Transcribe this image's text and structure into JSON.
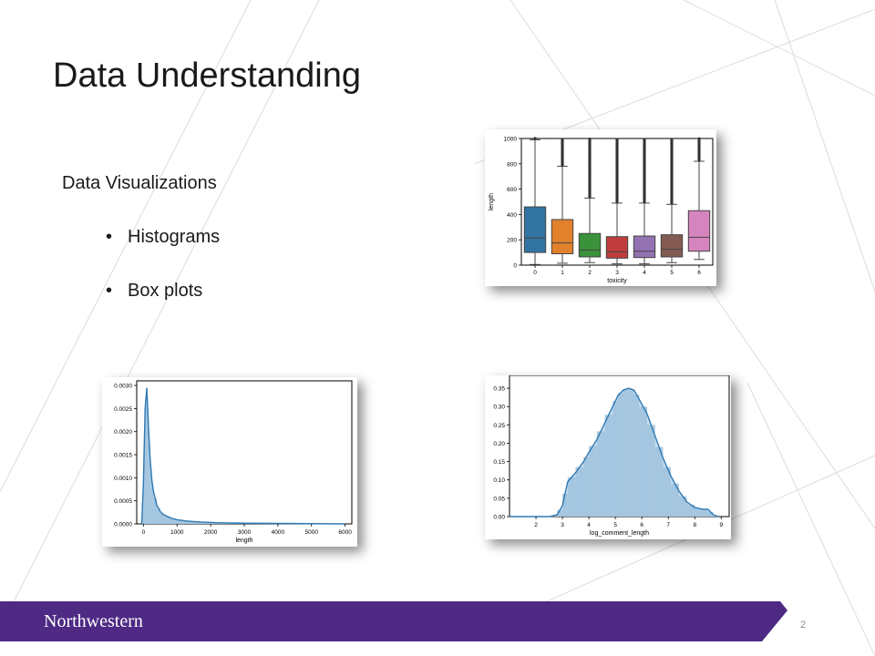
{
  "slide": {
    "title": "Data Understanding",
    "subtitle": "Data Visualizations",
    "bullets": [
      "Histograms",
      "Box plots"
    ],
    "footer_brand": "Northwestern",
    "page_number": "2",
    "colors": {
      "footer_purple": "#4e2a84",
      "line_gray": "#d9d9d9"
    }
  },
  "chart_data": [
    {
      "type": "box",
      "xlabel": "toxicity",
      "ylabel": "length",
      "ylim": [
        0,
        1000
      ],
      "yticks": [
        0,
        200,
        400,
        600,
        800,
        1000
      ],
      "categories": [
        "0",
        "1",
        "2",
        "3",
        "4",
        "5",
        "6"
      ],
      "colors": [
        "#3274a1",
        "#e1812c",
        "#3a923a",
        "#c03d3e",
        "#9372b2",
        "#845b53",
        "#d684bd"
      ],
      "boxes": [
        {
          "min": 5,
          "q1": 100,
          "median": 215,
          "q3": 460,
          "max": 990
        },
        {
          "min": 15,
          "q1": 90,
          "median": 175,
          "q3": 360,
          "max": 780
        },
        {
          "min": 20,
          "q1": 65,
          "median": 120,
          "q3": 250,
          "max": 530
        },
        {
          "min": 10,
          "q1": 55,
          "median": 105,
          "q3": 225,
          "max": 490
        },
        {
          "min": 10,
          "q1": 60,
          "median": 110,
          "q3": 230,
          "max": 490
        },
        {
          "min": 20,
          "q1": 65,
          "median": 125,
          "q3": 240,
          "max": 480
        },
        {
          "min": 45,
          "q1": 110,
          "median": 220,
          "q3": 430,
          "max": 820
        }
      ]
    },
    {
      "type": "area",
      "xlabel": "length",
      "ylabel": "",
      "xlim": [
        -200,
        6200
      ],
      "ylim": [
        0,
        0.0031
      ],
      "xticks": [
        0,
        1000,
        2000,
        3000,
        4000,
        5000,
        6000
      ],
      "yticks": [
        "0.0000",
        "0.0005",
        "0.0010",
        "0.0015",
        "0.0020",
        "0.0025",
        "0.0030"
      ],
      "ytick_values": [
        0,
        0.0005,
        0.001,
        0.0015,
        0.002,
        0.0025,
        0.003
      ],
      "x": [
        -50,
        0,
        50,
        100,
        150,
        200,
        250,
        300,
        400,
        500,
        600,
        800,
        1000,
        1300,
        1700,
        2200,
        3000,
        4000,
        5000,
        6000
      ],
      "y": [
        0,
        0.0009,
        0.0025,
        0.00295,
        0.0021,
        0.0014,
        0.00095,
        0.0007,
        0.0004,
        0.00027,
        0.0002,
        0.00013,
        9e-05,
        6e-05,
        4e-05,
        2.5e-05,
        1.5e-05,
        1e-05,
        5e-06,
        0
      ]
    },
    {
      "type": "area",
      "xlabel": "log_comment_length",
      "ylabel": "",
      "xlim": [
        1.0,
        9.3
      ],
      "ylim": [
        0,
        0.385
      ],
      "xticks": [
        2,
        3,
        4,
        5,
        6,
        7,
        8,
        9
      ],
      "yticks": [
        "0.00",
        "0.05",
        "0.10",
        "0.15",
        "0.20",
        "0.25",
        "0.30",
        "0.35"
      ],
      "ytick_values": [
        0,
        0.05,
        0.1,
        0.15,
        0.2,
        0.25,
        0.3,
        0.35
      ],
      "x": [
        1.0,
        2.5,
        2.8,
        3.0,
        3.2,
        3.5,
        3.8,
        4.0,
        4.3,
        4.6,
        4.9,
        5.1,
        5.3,
        5.5,
        5.7,
        5.9,
        6.2,
        6.5,
        6.8,
        7.1,
        7.4,
        7.7,
        8.0,
        8.3,
        8.5,
        8.7,
        8.9
      ],
      "y": [
        0,
        0,
        0.005,
        0.03,
        0.095,
        0.12,
        0.15,
        0.175,
        0.21,
        0.255,
        0.3,
        0.33,
        0.345,
        0.35,
        0.345,
        0.32,
        0.28,
        0.22,
        0.16,
        0.11,
        0.07,
        0.04,
        0.025,
        0.02,
        0.02,
        0.005,
        0
      ]
    }
  ]
}
